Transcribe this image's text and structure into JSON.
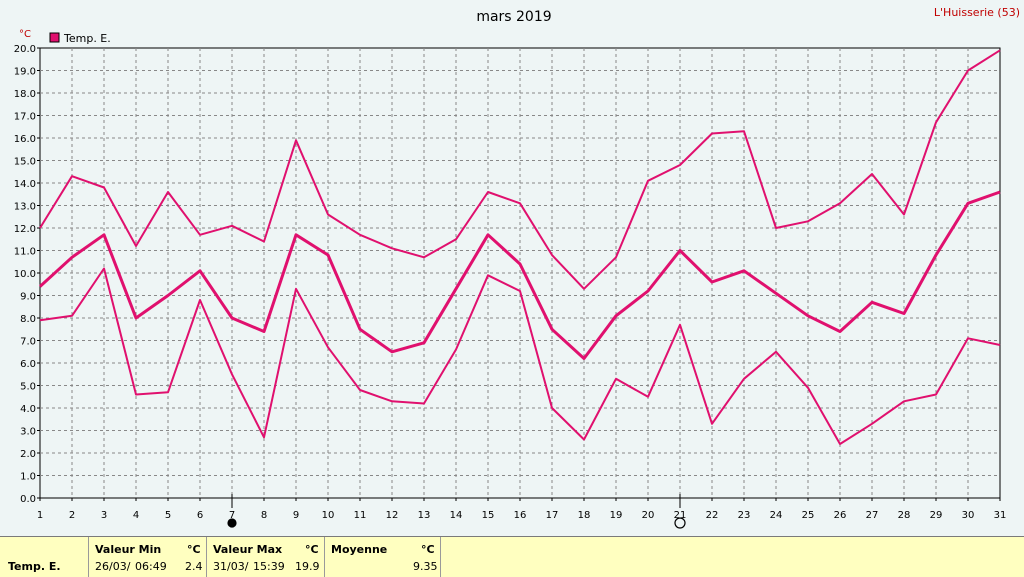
{
  "chart_data": {
    "type": "line",
    "title": "mars 2019",
    "station": "L'Huisserie (53)",
    "yunit": "°C",
    "ylim": [
      0,
      20
    ],
    "xlim": [
      1,
      31
    ],
    "grid": true,
    "legend_position": "top-left",
    "x": [
      1,
      2,
      3,
      4,
      5,
      6,
      7,
      8,
      9,
      10,
      11,
      12,
      13,
      14,
      15,
      16,
      17,
      18,
      19,
      20,
      21,
      22,
      23,
      24,
      25,
      26,
      27,
      28,
      29,
      30,
      31
    ],
    "x_tick_labels": [
      "1",
      "2",
      "3",
      "4",
      "5",
      "6",
      "7",
      "8",
      "9",
      "10",
      "11",
      "12",
      "13",
      "14",
      "15",
      "16",
      "17",
      "18",
      "19",
      "20",
      "21",
      "22",
      "23",
      "24",
      "25",
      "26",
      "27",
      "28",
      "29",
      "30",
      "31"
    ],
    "y_tick_labels": [
      "0.0",
      "1.0",
      "2.0",
      "3.0",
      "4.0",
      "5.0",
      "6.0",
      "7.0",
      "8.0",
      "9.0",
      "10.0",
      "11.0",
      "12.0",
      "13.0",
      "14.0",
      "15.0",
      "16.0",
      "17.0",
      "18.0",
      "19.0",
      "20.0"
    ],
    "color": "#e0106e",
    "legend": [
      {
        "label": "Temp. E.",
        "color": "#e0106e"
      }
    ],
    "series": [
      {
        "role": "max",
        "values": [
          12.0,
          14.3,
          13.8,
          11.2,
          13.6,
          11.7,
          12.1,
          11.4,
          15.9,
          12.6,
          11.7,
          11.1,
          10.7,
          11.5,
          13.6,
          13.1,
          10.8,
          9.3,
          10.7,
          14.1,
          14.8,
          16.2,
          16.3,
          12.0,
          12.3,
          13.1,
          14.4,
          12.6,
          16.7,
          19.0,
          19.9
        ]
      },
      {
        "role": "mean",
        "values": [
          9.4,
          10.7,
          11.7,
          8.0,
          9.0,
          10.1,
          8.0,
          7.4,
          11.7,
          10.8,
          7.5,
          6.5,
          6.9,
          9.3,
          11.7,
          10.4,
          7.5,
          6.2,
          8.1,
          9.2,
          11.0,
          9.6,
          10.1,
          9.1,
          8.1,
          7.4,
          8.7,
          8.2,
          10.8,
          13.1,
          13.6
        ]
      },
      {
        "role": "min",
        "values": [
          7.9,
          8.1,
          10.2,
          4.6,
          4.7,
          8.8,
          5.5,
          2.7,
          9.3,
          6.7,
          4.8,
          4.3,
          4.2,
          6.6,
          9.9,
          9.2,
          4.0,
          2.6,
          5.3,
          4.5,
          7.7,
          3.3,
          5.3,
          6.5,
          4.9,
          2.4,
          3.3,
          4.3,
          4.6,
          7.1,
          6.8
        ]
      }
    ],
    "moon_markers": [
      {
        "day": 7,
        "phase": "new-moon-icon"
      },
      {
        "day": 21,
        "phase": "full-moon-icon"
      }
    ]
  },
  "footer": {
    "row_label": "Temp. E.",
    "min": {
      "title": "Valeur Min",
      "unit": "°C",
      "date": "26/03/",
      "time": "06:49",
      "value": "2.4"
    },
    "max": {
      "title": "Valeur Max",
      "unit": "°C",
      "date": "31/03/",
      "time": "15:39",
      "value": "19.9"
    },
    "mean": {
      "title": "Moyenne",
      "unit": "°C",
      "value": "9.35"
    }
  }
}
